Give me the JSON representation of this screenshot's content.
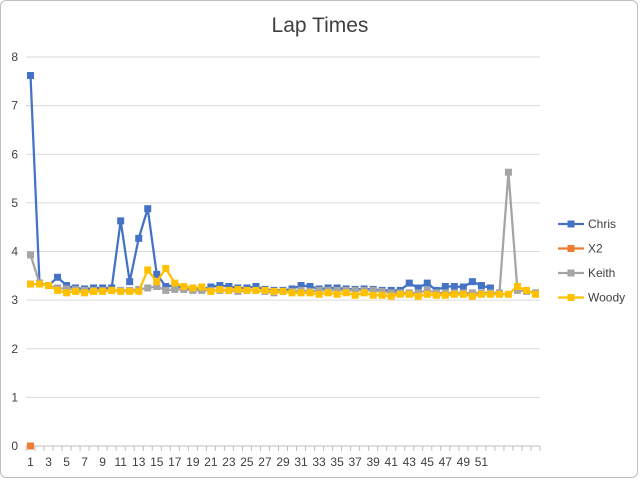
{
  "chart_data": {
    "type": "line",
    "title": "Lap Times",
    "xlabel": "",
    "ylabel": "",
    "ylim": [
      0,
      8
    ],
    "yticks": [
      0,
      1,
      2,
      3,
      4,
      5,
      6,
      7,
      8
    ],
    "x_tick_labels": [
      "1",
      "3",
      "5",
      "7",
      "9",
      "11",
      "13",
      "15",
      "17",
      "19",
      "21",
      "23",
      "25",
      "27",
      "29",
      "31",
      "33",
      "35",
      "37",
      "39",
      "41",
      "43",
      "45",
      "47",
      "49",
      "51"
    ],
    "grid": "horizontal",
    "legend_position": "right",
    "series": [
      {
        "name": "Chris",
        "color": "#4472C4",
        "marker": "square",
        "x": [
          1,
          2,
          3,
          4,
          5,
          6,
          7,
          8,
          9,
          10,
          11,
          12,
          13,
          14,
          15,
          16,
          17,
          18,
          19,
          20,
          21,
          22,
          23,
          24,
          25,
          26,
          27,
          28,
          29,
          30,
          31,
          32,
          33,
          34,
          35,
          36,
          37,
          38,
          39,
          40,
          41,
          42,
          43,
          44,
          45,
          46,
          47,
          48,
          49,
          50,
          51,
          52
        ],
        "values": [
          7.62,
          3.35,
          3.3,
          3.47,
          3.3,
          3.25,
          3.23,
          3.25,
          3.25,
          3.25,
          4.63,
          3.38,
          4.27,
          4.88,
          3.53,
          3.28,
          3.3,
          3.25,
          3.22,
          3.22,
          3.27,
          3.3,
          3.28,
          3.25,
          3.25,
          3.28,
          3.22,
          3.2,
          3.2,
          3.23,
          3.3,
          3.28,
          3.23,
          3.25,
          3.25,
          3.23,
          3.22,
          3.23,
          3.22,
          3.2,
          3.2,
          3.2,
          3.35,
          3.25,
          3.35,
          3.2,
          3.28,
          3.28,
          3.27,
          3.38,
          3.3,
          3.25
        ]
      },
      {
        "name": "X2",
        "color": "#ED7D31",
        "marker": "square",
        "x": [
          1
        ],
        "values": [
          0.0
        ]
      },
      {
        "name": "Keith",
        "color": "#A5A5A5",
        "marker": "square",
        "x": [
          1,
          2,
          3,
          4,
          5,
          6,
          7,
          8,
          9,
          10,
          11,
          12,
          13,
          14,
          15,
          16,
          17,
          18,
          19,
          20,
          21,
          22,
          23,
          24,
          25,
          26,
          27,
          28,
          29,
          30,
          31,
          32,
          33,
          34,
          35,
          36,
          37,
          38,
          39,
          40,
          41,
          42,
          43,
          44,
          45,
          46,
          47,
          48,
          49,
          50,
          51,
          52,
          53,
          54,
          55,
          56,
          57
        ],
        "values": [
          3.93,
          3.35,
          3.3,
          3.25,
          3.23,
          3.22,
          3.2,
          3.2,
          3.2,
          3.2,
          3.2,
          3.2,
          3.22,
          3.25,
          3.28,
          3.2,
          3.22,
          3.22,
          3.2,
          3.2,
          3.2,
          3.2,
          3.2,
          3.18,
          3.2,
          3.2,
          3.18,
          3.15,
          3.18,
          3.18,
          3.2,
          3.18,
          3.2,
          3.2,
          3.2,
          3.2,
          3.2,
          3.2,
          3.2,
          3.18,
          3.15,
          3.15,
          3.15,
          3.15,
          3.2,
          3.15,
          3.15,
          3.15,
          3.15,
          3.15,
          3.15,
          3.15,
          3.15,
          5.63,
          3.2,
          3.18,
          3.15
        ]
      },
      {
        "name": "Woody",
        "color": "#FFC000",
        "marker": "square",
        "x": [
          1,
          2,
          3,
          4,
          5,
          6,
          7,
          8,
          9,
          10,
          11,
          12,
          13,
          14,
          15,
          16,
          17,
          18,
          19,
          20,
          21,
          22,
          23,
          24,
          25,
          26,
          27,
          28,
          29,
          30,
          31,
          32,
          33,
          34,
          35,
          36,
          37,
          38,
          39,
          40,
          41,
          42,
          43,
          44,
          45,
          46,
          47,
          48,
          49,
          50,
          51,
          52,
          53,
          54,
          55,
          56,
          57
        ],
        "values": [
          3.33,
          3.33,
          3.3,
          3.2,
          3.15,
          3.18,
          3.15,
          3.18,
          3.18,
          3.2,
          3.18,
          3.18,
          3.18,
          3.62,
          3.38,
          3.65,
          3.35,
          3.28,
          3.25,
          3.27,
          3.18,
          3.22,
          3.2,
          3.22,
          3.2,
          3.2,
          3.2,
          3.18,
          3.18,
          3.15,
          3.15,
          3.15,
          3.12,
          3.15,
          3.12,
          3.15,
          3.1,
          3.15,
          3.1,
          3.1,
          3.08,
          3.12,
          3.12,
          3.08,
          3.12,
          3.1,
          3.1,
          3.12,
          3.12,
          3.08,
          3.12,
          3.12,
          3.12,
          3.12,
          3.28,
          3.2,
          3.12
        ]
      }
    ]
  }
}
